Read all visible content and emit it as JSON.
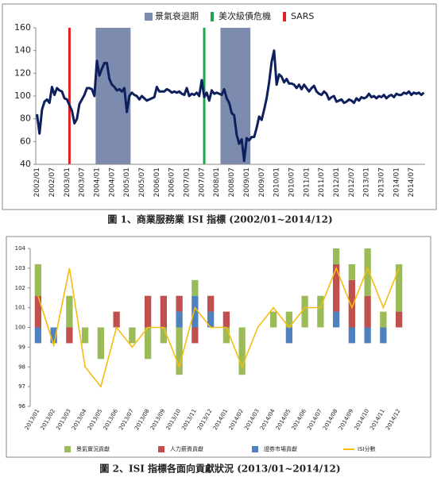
{
  "chart_data": [
    {
      "type": "line",
      "caption": "圖 1、商業服務業 ISI 指標 (2002/01~2014/12)",
      "categories": [
        "2002/01",
        null,
        null,
        null,
        null,
        null,
        "2002/07",
        null,
        null,
        null,
        null,
        null,
        "2003/01",
        null,
        null,
        null,
        null,
        null,
        "2003/07",
        null,
        null,
        null,
        null,
        null,
        "2004/01",
        null,
        null,
        null,
        null,
        null,
        "2004/07",
        null,
        null,
        null,
        null,
        null,
        "2005/01",
        null,
        null,
        null,
        null,
        null,
        "2005/07",
        null,
        null,
        null,
        null,
        null,
        "2006/01",
        null,
        null,
        null,
        null,
        null,
        "2006/07",
        null,
        null,
        null,
        null,
        null,
        "2007/01",
        null,
        null,
        null,
        null,
        null,
        "2007/07",
        null,
        null,
        null,
        null,
        null,
        "2008/01",
        null,
        null,
        null,
        null,
        null,
        "2008/07",
        null,
        null,
        null,
        null,
        null,
        "2009/01",
        null,
        null,
        null,
        null,
        null,
        "2009/07",
        null,
        null,
        null,
        null,
        null,
        "2010/01",
        null,
        null,
        null,
        null,
        null,
        "2010/07",
        null,
        null,
        null,
        null,
        null,
        "2011/01",
        null,
        null,
        null,
        null,
        null,
        "2011/07",
        null,
        null,
        null,
        null,
        null,
        "2012/01",
        null,
        null,
        null,
        null,
        null,
        "2012/07",
        null,
        null,
        null,
        null,
        null,
        "2013/01",
        null,
        null,
        null,
        null,
        null,
        "2013/07",
        null,
        null,
        null,
        null,
        null,
        "2014/01",
        null,
        null,
        null,
        null,
        null,
        "2014/07",
        null,
        null,
        null,
        null,
        null
      ],
      "values": [
        84,
        67,
        88,
        95,
        97,
        94,
        108,
        101,
        107,
        105,
        104,
        98,
        97,
        92,
        87,
        76,
        80,
        93,
        97,
        101,
        107,
        107,
        106,
        100,
        131,
        118,
        124,
        129,
        129,
        115,
        110,
        108,
        105,
        106,
        104,
        107,
        86,
        100,
        103,
        101,
        100,
        97,
        100,
        98,
        96,
        97,
        98,
        99,
        108,
        104,
        104,
        104,
        106,
        105,
        103,
        104,
        103,
        104,
        102,
        101,
        107,
        100,
        102,
        101,
        103,
        100,
        114,
        99,
        103,
        96,
        105,
        102,
        103,
        102,
        101,
        106,
        98,
        94,
        85,
        83,
        66,
        58,
        62,
        43,
        63,
        61,
        64,
        64,
        72,
        82,
        79,
        88,
        98,
        112,
        130,
        140,
        110,
        119,
        117,
        112,
        115,
        111,
        111,
        110,
        107,
        110,
        106,
        110,
        107,
        104,
        107,
        109,
        104,
        102,
        101,
        104,
        102,
        97,
        99,
        100,
        95,
        96,
        97,
        94,
        95,
        97,
        96,
        94,
        98,
        96,
        99,
        98,
        99,
        102,
        99,
        100,
        98,
        100,
        99,
        101,
        98,
        100,
        101,
        99,
        102,
        101,
        101,
        103,
        102,
        104,
        101,
        103,
        102,
        103,
        101,
        103
      ],
      "color": "#0d1f5c",
      "series": [
        {
          "name": "景氣衰退期",
          "kind": "band",
          "color": "#7d8cae",
          "ranges": [
            [
              24,
              37
            ],
            [
              74,
              85
            ]
          ]
        },
        {
          "name": "美次級債危機",
          "kind": "vline",
          "color": "#1fa64a",
          "at": [
            67
          ]
        },
        {
          "name": "SARS",
          "kind": "vline",
          "color": "#e02020",
          "at": [
            13
          ]
        }
      ],
      "ylim": [
        40,
        160
      ],
      "yticks": [
        40,
        60,
        80,
        100,
        120,
        140,
        160
      ],
      "grid": false
    },
    {
      "type": "bar",
      "caption": "圖 2、ISI 指標各面向貢獻狀況 (2013/01~2014/12)",
      "categories": [
        "2013/01",
        "2013/02",
        "2013/03",
        "2013/04",
        "2013/05",
        "2013/06",
        "2013/07",
        "2013/08",
        "2013/09",
        "2013/10",
        "2013/11",
        "2013/12",
        "2014/01",
        "2014/02",
        "2014/03",
        "2014/04",
        "2014/05",
        "2014/06",
        "2014/07",
        "2014/08",
        "2014/09",
        "2014/10",
        "2014/11",
        "2014/12"
      ],
      "base": 100,
      "series": [
        {
          "name": "證券市場貢獻",
          "kind": "bar",
          "color": "#4f81bd",
          "values": [
            -0.8,
            -0.8,
            0,
            0,
            0,
            0,
            0,
            0,
            0,
            0.8,
            1.6,
            0.8,
            0,
            0,
            0,
            0,
            -0.8,
            0,
            0,
            0.8,
            -0.8,
            -0.8,
            -0.8,
            0
          ]
        },
        {
          "name": "人力薪資貢獻",
          "kind": "bar",
          "color": "#c0504d",
          "values": [
            1.6,
            0,
            -0.8,
            0,
            0,
            0.8,
            0,
            1.6,
            1.6,
            0.8,
            -0.8,
            0.8,
            0.8,
            0,
            0,
            0,
            0,
            0,
            0,
            2.4,
            2.4,
            1.6,
            0,
            0.8
          ]
        },
        {
          "name": "景氣實況貢獻",
          "kind": "bar",
          "color": "#9bbb59",
          "values": [
            1.6,
            0,
            1.6,
            -0.8,
            -1.6,
            0,
            -0.8,
            -1.6,
            -0.8,
            -2.4,
            0.8,
            0,
            -0.8,
            -2.4,
            0,
            0.8,
            0.8,
            1.6,
            1.6,
            0.8,
            0.8,
            2.4,
            0.8,
            2.4
          ]
        },
        {
          "name": "ISI分數",
          "kind": "line",
          "color": "#f5bd0f",
          "values": [
            101.6,
            99.1,
            103,
            98,
            97,
            100,
            99,
            100,
            100,
            98,
            101,
            100,
            100,
            98,
            100,
            101,
            100,
            101,
            101,
            103,
            101,
            103,
            101,
            103
          ]
        }
      ],
      "legend_order": [
        2,
        1,
        0,
        3
      ],
      "ylim": [
        96,
        104
      ],
      "yticks": [
        96,
        97,
        98,
        99,
        100,
        101,
        102,
        103,
        104
      ],
      "grid": false
    }
  ]
}
